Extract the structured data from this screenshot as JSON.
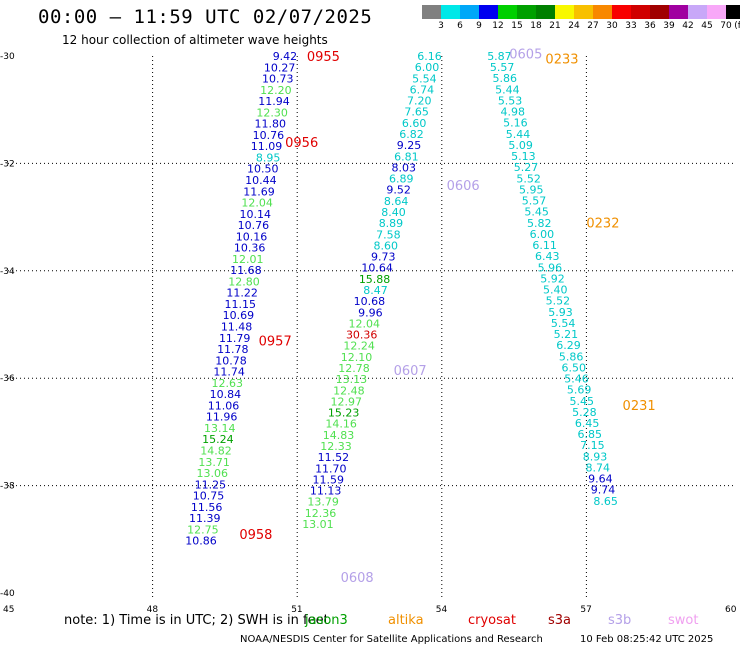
{
  "title": "00:00 — 11:59 UTC 02/07/2025",
  "subtitle": "12 hour collection of altimeter wave heights",
  "colorbar": {
    "unit": "(ft)",
    "labels": [
      "3",
      "6",
      "9",
      "12",
      "15",
      "18",
      "21",
      "24",
      "27",
      "30",
      "33",
      "36",
      "39",
      "42",
      "45",
      "70"
    ],
    "colors": [
      "#808080",
      "#00e8e8",
      "#00a8f8",
      "#0000f0",
      "#00d000",
      "#00a000",
      "#008000",
      "#f8f800",
      "#f8c000",
      "#f88800",
      "#f80000",
      "#d00000",
      "#a00000",
      "#a000a0",
      "#c8a8f8",
      "#f8a8f8",
      "#000000"
    ]
  },
  "axes": {
    "x_ticks": [
      "45",
      "48",
      "51",
      "54",
      "57",
      "60"
    ],
    "y_ticks": [
      "-30",
      "-32",
      "-34",
      "-36",
      "-38",
      "-40"
    ]
  },
  "tracks": [
    {
      "id": "west",
      "start_lon": 51.0,
      "start_lat": -30.0,
      "step_lon": -0.0388,
      "step_lat": -0.2099,
      "values": [
        "9.42",
        "10.27",
        "10.73",
        "12.20",
        "11.94",
        "12.30",
        "11.80",
        "10.76",
        "11.09",
        "8.95",
        "10.50",
        "10.44",
        "11.69",
        "12.04",
        "10.14",
        "10.76",
        "10.16",
        "10.36",
        "12.01",
        "11.68",
        "12.80",
        "11.22",
        "11.15",
        "10.69",
        "11.48",
        "11.79",
        "11.78",
        "10.78",
        "11.74",
        "12.63",
        "10.84",
        "11.06",
        "11.96",
        "13.14",
        "15.24",
        "14.82",
        "13.71",
        "13.06",
        "11.25",
        "10.75",
        "11.56",
        "11.39",
        "12.75",
        "10.86"
      ],
      "colors": [
        "#0000c8",
        "#0000c8",
        "#0000c8",
        "#50e050",
        "#0000c8",
        "#50e050",
        "#0000c8",
        "#0000c8",
        "#0000c8",
        "#00c8c8",
        "#0000c8",
        "#0000c8",
        "#0000c8",
        "#50e050",
        "#0000c8",
        "#0000c8",
        "#0000c8",
        "#0000c8",
        "#50e050",
        "#0000c8",
        "#50e050",
        "#0000c8",
        "#0000c8",
        "#0000c8",
        "#0000c8",
        "#0000c8",
        "#0000c8",
        "#0000c8",
        "#0000c8",
        "#50e050",
        "#0000c8",
        "#0000c8",
        "#0000c8",
        "#50e050",
        "#00a000",
        "#50e050",
        "#50e050",
        "#50e050",
        "#0000c8",
        "#0000c8",
        "#0000c8",
        "#0000c8",
        "#50e050",
        "#0000c8"
      ]
    },
    {
      "id": "middle",
      "start_lon": 54.0,
      "start_lat": -30.0,
      "step_lon": -0.0534,
      "step_lat": -0.2075,
      "values": [
        "6.16",
        "6.00",
        "5.54",
        "6.74",
        "7.20",
        "7.65",
        "6.60",
        "6.82",
        "9.25",
        "6.81",
        "8.03",
        "6.89",
        "9.52",
        "8.64",
        "8.40",
        "8.89",
        "7.58",
        "8.60",
        "9.73",
        "10.64",
        "15.88",
        "8.47",
        "10.68",
        "9.96",
        "12.04",
        "30.36",
        "12.24",
        "12.10",
        "12.78",
        "13.13",
        "12.48",
        "12.97",
        "15.23",
        "14.16",
        "14.83",
        "12.33",
        "11.52",
        "11.70",
        "11.59",
        "11.13",
        "13.79",
        "12.36",
        "13.01"
      ],
      "colors": [
        "#00c8c8",
        "#00c8c8",
        "#00c8c8",
        "#00c8c8",
        "#00c8c8",
        "#00c8c8",
        "#00c8c8",
        "#00c8c8",
        "#0000c8",
        "#00c8c8",
        "#0000c8",
        "#00c8c8",
        "#0000c8",
        "#00c8c8",
        "#00c8c8",
        "#00c8c8",
        "#00c8c8",
        "#00c8c8",
        "#0000c8",
        "#0000c8",
        "#00a000",
        "#00c8c8",
        "#0000c8",
        "#0000c8",
        "#50e050",
        "#d00000",
        "#50e050",
        "#50e050",
        "#50e050",
        "#50e050",
        "#50e050",
        "#50e050",
        "#00a000",
        "#50e050",
        "#50e050",
        "#50e050",
        "#0000c8",
        "#0000c8",
        "#0000c8",
        "#0000c8",
        "#50e050",
        "#50e050",
        "#50e050"
      ]
    },
    {
      "id": "east",
      "start_lon": 55.45,
      "start_lat": -30.0,
      "step_lon": 0.0551,
      "step_lat": -0.2071,
      "values": [
        "5.87",
        "5.57",
        "5.86",
        "5.44",
        "5.53",
        "4.98",
        "5.16",
        "5.44",
        "5.09",
        "5.13",
        "5.27",
        "5.52",
        "5.95",
        "5.57",
        "5.45",
        "5.82",
        "6.00",
        "6.11",
        "6.43",
        "5.96",
        "5.92",
        "5.40",
        "5.52",
        "5.93",
        "5.54",
        "5.21",
        "6.29",
        "5.86",
        "6.50",
        "5.46",
        "5.69",
        "5.45",
        "5.28",
        "6.45",
        "6.85",
        "7.15",
        "8.93",
        "8.74",
        "9.64",
        "9.74",
        "8.65"
      ],
      "colors": [
        "#00c8c8",
        "#00c8c8",
        "#00c8c8",
        "#00c8c8",
        "#00c8c8",
        "#00c8c8",
        "#00c8c8",
        "#00c8c8",
        "#00c8c8",
        "#00c8c8",
        "#00c8c8",
        "#00c8c8",
        "#00c8c8",
        "#00c8c8",
        "#00c8c8",
        "#00c8c8",
        "#00c8c8",
        "#00c8c8",
        "#00c8c8",
        "#00c8c8",
        "#00c8c8",
        "#00c8c8",
        "#00c8c8",
        "#00c8c8",
        "#00c8c8",
        "#00c8c8",
        "#00c8c8",
        "#00c8c8",
        "#00c8c8",
        "#00c8c8",
        "#00c8c8",
        "#00c8c8",
        "#00c8c8",
        "#00c8c8",
        "#00c8c8",
        "#00c8c8",
        "#00c8c8",
        "#00c8c8",
        "#0000c8",
        "#0000c8",
        "#00c8c8"
      ]
    }
  ],
  "time_labels": [
    {
      "text": "0955",
      "lon": 51.2,
      "lat": -30.0,
      "color": "#e00000"
    },
    {
      "text": "0956",
      "lon": 50.75,
      "lat": -31.6,
      "color": "#e00000"
    },
    {
      "text": "0957",
      "lon": 50.2,
      "lat": -35.3,
      "color": "#e00000"
    },
    {
      "text": "0958",
      "lon": 49.8,
      "lat": -38.9,
      "color": "#e00000"
    },
    {
      "text": "0605",
      "lon": 55.4,
      "lat": -29.95,
      "color": "#b4a0e8"
    },
    {
      "text": "0606",
      "lon": 54.1,
      "lat": -32.4,
      "color": "#b4a0e8"
    },
    {
      "text": "0607",
      "lon": 53.0,
      "lat": -35.85,
      "color": "#b4a0e8"
    },
    {
      "text": "0608",
      "lon": 51.9,
      "lat": -39.7,
      "color": "#b4a0e8"
    },
    {
      "text": "0233",
      "lon": 56.15,
      "lat": -30.05,
      "color": "#f09000"
    },
    {
      "text": "0232",
      "lon": 57.0,
      "lat": -33.1,
      "color": "#f09000"
    },
    {
      "text": "0231",
      "lon": 57.75,
      "lat": -36.5,
      "color": "#f09000"
    }
  ],
  "note": {
    "text": "note:  1) Time is in UTC; 2) SWH is in feet",
    "satellites": [
      {
        "name": "jason3",
        "color": "#00a000"
      },
      {
        "name": "altika",
        "color": "#f09000"
      },
      {
        "name": "cryosat",
        "color": "#e00000"
      },
      {
        "name": "s3a",
        "color": "#a00000"
      },
      {
        "name": "s3b",
        "color": "#b4a0e8"
      },
      {
        "name": "swot",
        "color": "#f0a0f0"
      }
    ]
  },
  "footer": {
    "credit": "NOAA/NESDIS Center for Satellite Applications and Research",
    "timestamp": "10 Feb 08:25:42 UTC 2025"
  }
}
